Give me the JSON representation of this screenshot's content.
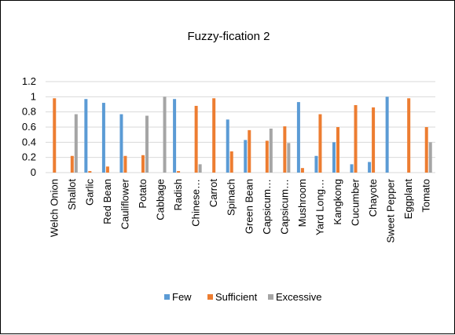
{
  "chart_data": {
    "type": "bar",
    "title": "Fuzzy-fication 2",
    "xlabel": "",
    "ylabel": "",
    "ylim": [
      0,
      1.2
    ],
    "yticks": [
      "0",
      "0.2",
      "0.4",
      "0.6",
      "0.8",
      "1",
      "1.2"
    ],
    "grid": true,
    "legend_position": "bottom",
    "categories": [
      "Welch Onion",
      "Shallot",
      "Garlic",
      "Red Bean",
      "Cauliflower",
      "Potato",
      "Cabbage",
      "Radish",
      "Chinese…",
      "Carrot",
      "Spinach",
      "Green Bean",
      "Capsicum…",
      "Capsicum…",
      "Mushroom",
      "Yard Long…",
      "Kangkong",
      "Cucumber",
      "Chayote",
      "Sweet Pepper",
      "Eggplant",
      "Tomato"
    ],
    "series": [
      {
        "name": "Few",
        "color": "#5b9bd5",
        "values": [
          0,
          0,
          0.97,
          0.92,
          0.77,
          0,
          0,
          0.97,
          0,
          0,
          0.7,
          0.43,
          0,
          0,
          0.93,
          0.22,
          0.4,
          0.11,
          0.14,
          1.0,
          0,
          0
        ]
      },
      {
        "name": "Sufficient",
        "color": "#ed7d31",
        "values": [
          0.98,
          0.22,
          0.02,
          0.08,
          0.22,
          0.23,
          0,
          0.02,
          0.88,
          0.98,
          0.28,
          0.56,
          0.42,
          0.61,
          0.06,
          0.77,
          0.6,
          0.89,
          0.86,
          0,
          0.98,
          0.6
        ]
      },
      {
        "name": "Excessive",
        "color": "#a5a5a5",
        "values": [
          0,
          0.77,
          0,
          0,
          0,
          0.75,
          1.0,
          0,
          0.11,
          0,
          0,
          0,
          0.58,
          0.39,
          0,
          0,
          0,
          0,
          0,
          0,
          0,
          0.4
        ]
      }
    ]
  }
}
